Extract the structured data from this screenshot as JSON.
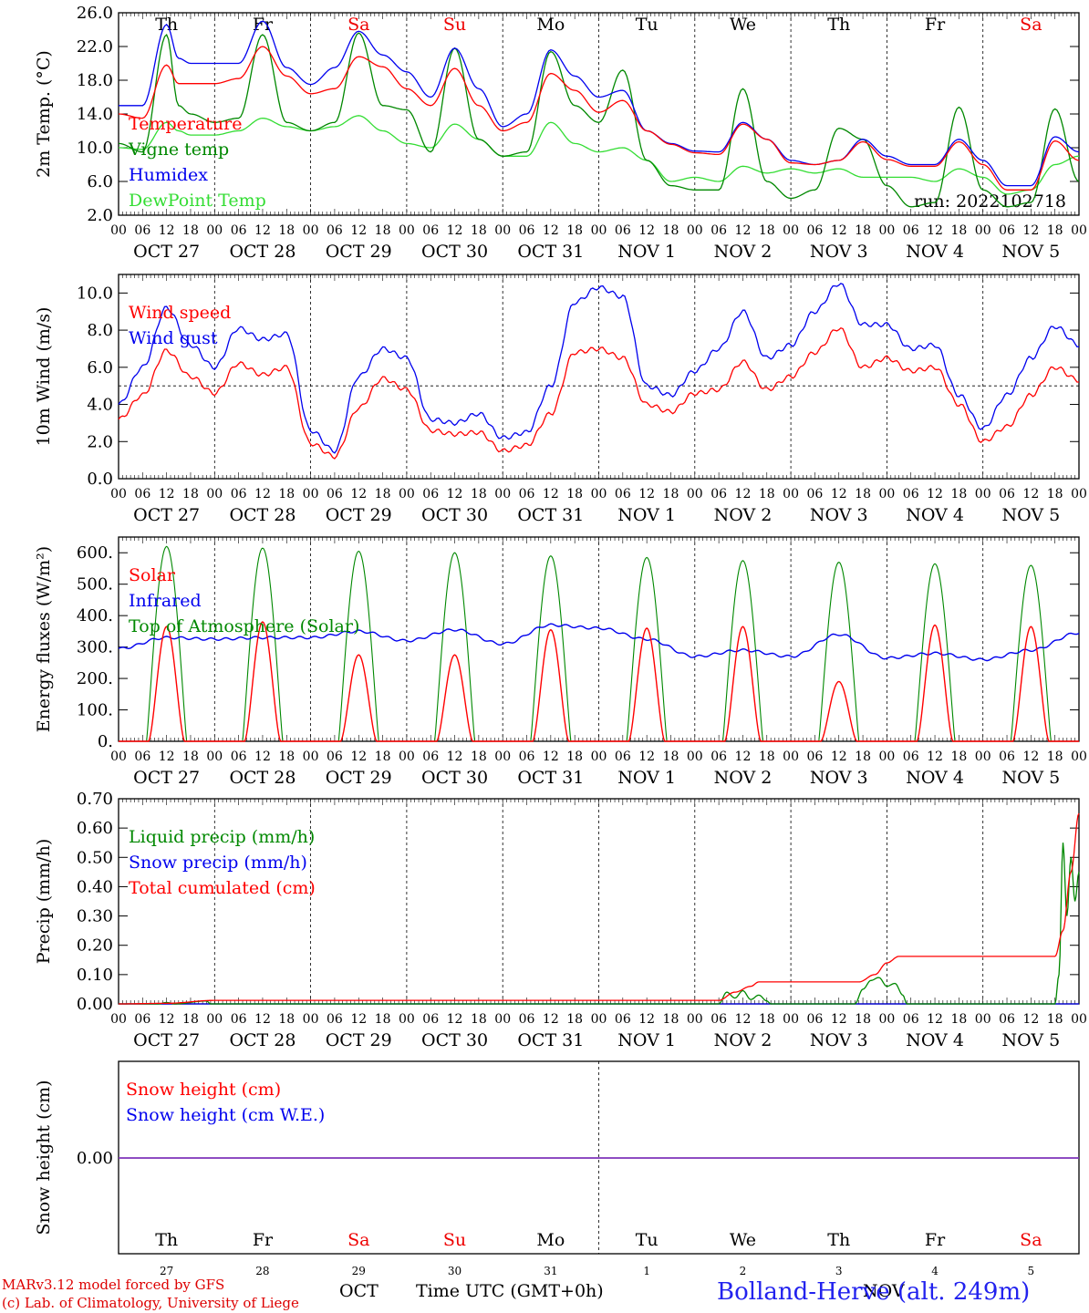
{
  "chart_data": [
    {
      "type": "line",
      "ylabel": "2m Temp. (°C)",
      "ylim": [
        2.0,
        26.0
      ],
      "yticks": [
        "2.0",
        "6.0",
        "10.0",
        "14.0",
        "18.0",
        "22.0",
        "26.0"
      ],
      "day_names": [
        "Th",
        "Fr",
        "Sa",
        "Su",
        "Mo",
        "Tu",
        "We",
        "Th",
        "Fr",
        "Sa"
      ],
      "date_labels": [
        "OCT 27",
        "OCT 28",
        "OCT 29",
        "OCT 30",
        "OCT 31",
        "NOV  1",
        "NOV  2",
        "NOV  3",
        "NOV  4",
        "NOV  5"
      ],
      "run_label": "run: 2022102718",
      "grid": true,
      "legend": "top-left",
      "series": [
        {
          "name": "Temperature",
          "color": "#ff0000",
          "x": [
            0,
            6,
            12,
            15,
            18,
            24,
            30,
            36,
            42,
            48,
            54,
            60,
            66,
            72,
            78,
            84,
            90,
            96,
            102,
            108,
            114,
            120,
            126,
            132,
            138,
            144,
            150,
            156,
            162,
            168,
            174,
            180,
            186,
            192,
            198,
            204,
            210,
            216,
            222,
            228,
            234,
            240
          ],
          "y": [
            14.0,
            13.5,
            19.8,
            17.6,
            17.6,
            17.6,
            18.2,
            22.0,
            18.5,
            16.4,
            17.0,
            20.8,
            19.6,
            17.0,
            15.0,
            19.4,
            15.0,
            12.0,
            13.0,
            18.8,
            16.8,
            14.2,
            15.6,
            12.0,
            10.4,
            9.4,
            9.2,
            12.8,
            11.0,
            8.2,
            8.0,
            8.5,
            10.7,
            8.6,
            7.8,
            7.8,
            10.7,
            8.0,
            5.0,
            5.0,
            10.8,
            8.5
          ]
        },
        {
          "name": "Vigne temp",
          "color": "#008800",
          "x": [
            0,
            6,
            12,
            15,
            18,
            24,
            30,
            36,
            42,
            48,
            54,
            60,
            66,
            72,
            78,
            84,
            90,
            96,
            102,
            108,
            114,
            120,
            126,
            132,
            138,
            144,
            150,
            156,
            162,
            168,
            174,
            180,
            186,
            192,
            198,
            204,
            210,
            216,
            222,
            228,
            234,
            240
          ],
          "y": [
            10.5,
            9.5,
            23.4,
            15.0,
            14.0,
            13.0,
            13.5,
            23.4,
            13.0,
            12.0,
            13.0,
            23.6,
            15.0,
            14.5,
            9.5,
            21.8,
            11.0,
            9.0,
            9.5,
            21.4,
            15.0,
            13.0,
            19.2,
            8.5,
            5.5,
            5.0,
            5.0,
            17.0,
            6.0,
            4.0,
            5.0,
            12.3,
            11.0,
            5.5,
            3.0,
            3.5,
            14.8,
            5.0,
            3.0,
            3.5,
            14.6,
            6.0
          ]
        },
        {
          "name": "Humidex",
          "color": "#0000ee",
          "x": [
            0,
            6,
            12,
            15,
            18,
            24,
            30,
            36,
            42,
            48,
            54,
            60,
            66,
            72,
            78,
            84,
            90,
            96,
            102,
            108,
            114,
            120,
            126,
            132,
            138,
            144,
            150,
            156,
            162,
            168,
            174,
            180,
            186,
            192,
            198,
            204,
            210,
            216,
            222,
            228,
            234,
            240
          ],
          "y": [
            15.0,
            15.0,
            24.6,
            20.6,
            20.0,
            20.0,
            20.0,
            25.0,
            19.5,
            17.5,
            19.5,
            23.8,
            21.0,
            19.0,
            16.0,
            21.8,
            17.0,
            12.5,
            14.0,
            21.6,
            18.5,
            16.0,
            16.8,
            12.0,
            10.5,
            9.6,
            9.5,
            13.0,
            11.0,
            8.5,
            8.0,
            8.5,
            11.0,
            9.0,
            8.0,
            8.0,
            11.0,
            8.5,
            5.5,
            5.5,
            11.3,
            9.5
          ]
        },
        {
          "name": "DewPoint Temp",
          "color": "#33dd33",
          "x": [
            0,
            6,
            12,
            15,
            18,
            24,
            30,
            36,
            42,
            48,
            54,
            60,
            66,
            72,
            78,
            84,
            90,
            96,
            102,
            108,
            114,
            120,
            126,
            132,
            138,
            144,
            150,
            156,
            162,
            168,
            174,
            180,
            186,
            192,
            198,
            204,
            210,
            216,
            222,
            228,
            234,
            240
          ],
          "y": [
            10.0,
            9.8,
            13.0,
            12.0,
            11.5,
            11.5,
            12.0,
            13.5,
            12.5,
            12.0,
            12.5,
            13.8,
            12.0,
            10.5,
            10.0,
            12.8,
            11.0,
            9.0,
            9.0,
            13.0,
            10.5,
            9.5,
            10.0,
            8.5,
            6.0,
            6.5,
            6.0,
            7.8,
            7.0,
            7.5,
            7.0,
            7.5,
            6.5,
            6.5,
            6.5,
            6.0,
            7.5,
            6.5,
            4.5,
            5.0,
            8.0,
            9.0
          ]
        }
      ]
    },
    {
      "type": "line",
      "ylabel": "10m Wind (m/s)",
      "ylim": [
        0.0,
        11.0
      ],
      "yticks": [
        "0.0",
        "2.0",
        "4.0",
        "6.0",
        "8.0",
        "10.0"
      ],
      "date_labels": [
        "OCT 27",
        "OCT 28",
        "OCT 29",
        "OCT 30",
        "OCT 31",
        "NOV  1",
        "NOV  2",
        "NOV  3",
        "NOV  4",
        "NOV  5"
      ],
      "reference_line": 5.0,
      "grid": true,
      "legend": "top-left",
      "series": [
        {
          "name": "Wind speed",
          "color": "#ff0000",
          "x": [
            0,
            6,
            12,
            18,
            24,
            30,
            36,
            42,
            48,
            54,
            60,
            66,
            72,
            78,
            84,
            90,
            96,
            102,
            108,
            114,
            120,
            126,
            132,
            138,
            144,
            150,
            156,
            162,
            168,
            174,
            180,
            186,
            192,
            198,
            204,
            210,
            216,
            222,
            228,
            234,
            240
          ],
          "y": [
            3.2,
            4.5,
            6.9,
            5.5,
            4.6,
            6.2,
            5.6,
            6.0,
            1.9,
            1.2,
            3.8,
            5.4,
            4.8,
            2.6,
            2.4,
            2.5,
            1.5,
            1.8,
            3.5,
            6.8,
            7.0,
            6.5,
            4.0,
            3.6,
            4.6,
            4.8,
            6.3,
            4.8,
            5.5,
            6.8,
            8.1,
            6.0,
            6.5,
            5.8,
            6.0,
            4.0,
            2.0,
            2.8,
            4.5,
            6.0,
            5.3
          ]
        },
        {
          "name": "Wind gust",
          "color": "#0000ee",
          "x": [
            0,
            6,
            12,
            18,
            24,
            30,
            36,
            42,
            48,
            54,
            60,
            66,
            72,
            78,
            84,
            90,
            96,
            102,
            108,
            114,
            120,
            126,
            132,
            138,
            144,
            150,
            156,
            162,
            168,
            174,
            180,
            186,
            192,
            198,
            204,
            210,
            216,
            222,
            228,
            234,
            240
          ],
          "y": [
            4.0,
            6.0,
            9.2,
            7.2,
            6.0,
            8.1,
            7.5,
            7.8,
            2.6,
            1.5,
            5.5,
            7.0,
            6.5,
            3.2,
            3.0,
            3.5,
            2.2,
            2.5,
            5.0,
            9.5,
            10.3,
            9.8,
            5.0,
            4.5,
            5.8,
            7.0,
            9.0,
            6.5,
            7.2,
            9.0,
            10.5,
            8.3,
            8.3,
            7.0,
            7.2,
            4.5,
            2.7,
            4.5,
            6.5,
            8.2,
            7.2
          ]
        }
      ]
    },
    {
      "type": "line",
      "ylabel": "Energy fluxes (W/m²)",
      "ylim": [
        0,
        650
      ],
      "yticks": [
        "0.",
        "100.",
        "200.",
        "300.",
        "400.",
        "500.",
        "600."
      ],
      "date_labels": [
        "OCT 27",
        "OCT 28",
        "OCT 29",
        "OCT 30",
        "OCT 31",
        "NOV  1",
        "NOV  2",
        "NOV  3",
        "NOV  4",
        "NOV  5"
      ],
      "grid": true,
      "legend": "top-left",
      "solar_peaks": [
        365,
        380,
        275,
        275,
        355,
        360,
        365,
        190,
        370,
        365
      ],
      "toa_peaks": [
        620,
        615,
        605,
        600,
        590,
        585,
        575,
        570,
        565,
        560
      ],
      "series": [
        {
          "name": "Solar",
          "color": "#ff0000"
        },
        {
          "name": "Infrared",
          "color": "#0000ee",
          "x": [
            0,
            12,
            24,
            36,
            48,
            60,
            72,
            84,
            96,
            108,
            120,
            132,
            144,
            156,
            168,
            180,
            192,
            204,
            216,
            228,
            240
          ],
          "y": [
            295,
            330,
            325,
            330,
            330,
            350,
            320,
            355,
            310,
            370,
            360,
            325,
            270,
            290,
            270,
            340,
            265,
            280,
            260,
            290,
            345
          ]
        },
        {
          "name": "Top of Atmosphere (Solar)",
          "color": "#008800"
        }
      ]
    },
    {
      "type": "line",
      "ylabel": "Precip (mm/h)",
      "ylim": [
        0.0,
        0.7
      ],
      "yticks": [
        "0.00",
        "0.10",
        "0.20",
        "0.30",
        "0.40",
        "0.50",
        "0.60",
        "0.70"
      ],
      "date_labels": [
        "OCT 27",
        "OCT 28",
        "OCT 29",
        "OCT 30",
        "OCT 31",
        "NOV  1",
        "NOV  2",
        "NOV  3",
        "NOV  4",
        "NOV  5"
      ],
      "grid": true,
      "legend": "top-left",
      "series": [
        {
          "name": "Liquid precip (mm/h)",
          "color": "#008800",
          "x": [
            0,
            10,
            12,
            14,
            22,
            23,
            150,
            152,
            154,
            156,
            158,
            160,
            162,
            163,
            184,
            186,
            188,
            190,
            192,
            194,
            196,
            197,
            234,
            235,
            236,
            237,
            238,
            239,
            240
          ],
          "y": [
            0,
            0,
            0.005,
            0,
            0.01,
            0,
            0,
            0.04,
            0.02,
            0.045,
            0.015,
            0.03,
            0.01,
            0,
            0,
            0.05,
            0.08,
            0.09,
            0.06,
            0.07,
            0.03,
            0,
            0,
            0.1,
            0.55,
            0.3,
            0.5,
            0.35,
            0.45
          ]
        },
        {
          "name": "Snow precip (mm/h)",
          "color": "#0000ee",
          "x": [
            0,
            240
          ],
          "y": [
            0,
            0
          ]
        },
        {
          "name": "Total cumulated (cm)",
          "color": "#ff0000",
          "x": [
            0,
            12,
            24,
            150,
            154,
            158,
            160,
            185,
            189,
            192,
            195,
            234,
            236,
            238,
            240
          ],
          "y": [
            0,
            0.002,
            0.012,
            0.012,
            0.04,
            0.06,
            0.075,
            0.075,
            0.1,
            0.14,
            0.162,
            0.162,
            0.25,
            0.45,
            0.65
          ]
        }
      ]
    },
    {
      "type": "line",
      "ylabel": "Snow height (cm)",
      "yticks": [
        "0.00"
      ],
      "grid": true,
      "legend": "top-left",
      "day_names": [
        "Th",
        "Fr",
        "Sa",
        "Su",
        "Mo",
        "Tu",
        "We",
        "Th",
        "Fr",
        "Sa"
      ],
      "day_numbers": [
        "27",
        "28",
        "29",
        "30",
        "31",
        "1",
        "2",
        "3",
        "4",
        "5"
      ],
      "series": [
        {
          "name": "Snow height (cm)",
          "color": "#ff0000",
          "x": [
            0,
            240
          ],
          "y": [
            0,
            0
          ]
        },
        {
          "name": "Snow height (cm W.E.)",
          "color": "#0000ee",
          "x": [
            0,
            240
          ],
          "y": [
            0,
            0
          ]
        }
      ]
    }
  ],
  "hour_ticks": [
    "00",
    "06",
    "12",
    "18"
  ],
  "weekend_color": "#ee0000",
  "footer": {
    "credit_line1": "MARv3.12 model forced by GFS",
    "credit_line2": "(c) Lab. of Climatology, University of Liege",
    "month_oct": "OCT",
    "month_nov": "NOV",
    "xlabel": "Time UTC (GMT+0h)",
    "station": "Bolland-Herve (alt. 249m)"
  }
}
